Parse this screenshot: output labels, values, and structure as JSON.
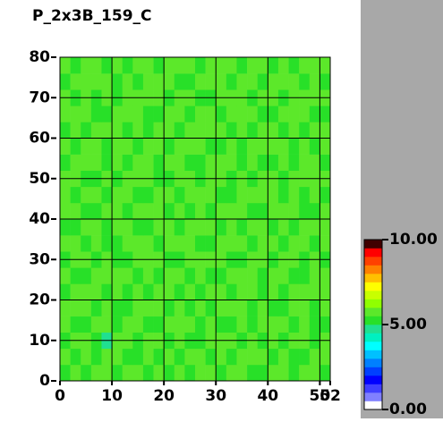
{
  "chart_data": {
    "type": "heatmap",
    "title": "P_2x3B_159_C",
    "xlim": [
      0,
      52
    ],
    "xticks": [
      0,
      10,
      20,
      30,
      40,
      50,
      52
    ],
    "ylim": [
      0,
      80
    ],
    "yticks": [
      0,
      10,
      20,
      30,
      40,
      50,
      60,
      70,
      80
    ],
    "grid": true,
    "clim": [
      0,
      10
    ],
    "cticks": [
      {
        "value": 0,
        "label": "0.00"
      },
      {
        "value": 5,
        "label": "5.00"
      },
      {
        "value": 10,
        "label": "10.00"
      }
    ],
    "colorscale": [
      "#ffffff",
      "#8080ff",
      "#4040ff",
      "#0000ff",
      "#0040ff",
      "#0080ff",
      "#00c0ff",
      "#00ffff",
      "#00f0c0",
      "#20e090",
      "#28e028",
      "#5ce82a",
      "#90ff00",
      "#c8ff00",
      "#ffff00",
      "#ffc000",
      "#ff8000",
      "#ff4000",
      "#ff0000",
      "#400000"
    ],
    "z": [
      [
        5.4,
        5.7,
        5.2,
        5.6,
        5.9,
        5.3,
        5.5,
        5.8,
        5.1,
        5.6,
        5.4,
        5.7,
        5.3,
        5.9,
        5.5,
        5.2,
        5.6,
        5.8,
        5.4,
        5.1,
        5.7,
        5.5,
        5.3,
        5.6,
        5.9,
        5.4
      ],
      [
        5.6,
        5.3,
        5.8,
        5.1,
        5.5,
        5.7,
        5.2,
        5.4,
        5.9,
        5.3,
        5.6,
        5.0,
        5.5,
        5.8,
        5.4,
        5.7,
        5.1,
        5.5,
        5.9,
        5.6,
        5.3,
        5.8,
        5.4,
        5.2,
        5.6,
        5.7
      ],
      [
        5.2,
        5.9,
        5.5,
        5.4,
        4.9,
        5.6,
        5.8,
        5.3,
        5.5,
        5.7,
        5.1,
        5.6,
        5.4,
        5.2,
        5.9,
        5.5,
        5.7,
        5.3,
        5.6,
        5.4,
        5.8,
        5.1,
        5.6,
        5.5,
        5.3,
        5.8
      ],
      [
        5.7,
        5.4,
        5.1,
        5.8,
        5.6,
        5.3,
        5.5,
        5.9,
        5.2,
        5.4,
        5.7,
        5.5,
        5.8,
        5.3,
        5.6,
        5.1,
        5.4,
        5.9,
        5.2,
        5.7,
        5.5,
        5.6,
        5.0,
        5.8,
        5.4,
        5.3
      ],
      [
        5.5,
        5.8,
        5.6,
        5.3,
        5.7,
        5.4,
        5.1,
        5.6,
        5.8,
        5.5,
        5.3,
        5.9,
        5.2,
        5.7,
        5.4,
        5.6,
        5.8,
        5.5,
        5.3,
        5.9,
        5.1,
        5.4,
        5.7,
        5.6,
        5.2,
        5.5
      ],
      [
        5.3,
        5.6,
        5.9,
        5.5,
        5.2,
        5.8,
        5.4,
        5.7,
        5.3,
        5.6,
        5.8,
        5.4,
        5.6,
        5.1,
        5.5,
        5.9,
        5.3,
        5.6,
        5.7,
        5.4,
        5.8,
        5.2,
        5.5,
        5.9,
        5.6,
        5.7
      ],
      [
        5.8,
        5.2,
        5.4,
        5.7,
        5.5,
        5.6,
        5.9,
        5.1,
        5.6,
        5.4,
        5.5,
        5.7,
        5.3,
        5.8,
        5.2,
        5.4,
        5.6,
        5.5,
        5.8,
        5.3,
        5.6,
        5.7,
        5.4,
        5.1,
        5.5,
        5.9
      ],
      [
        5.4,
        5.5,
        5.7,
        5.2,
        5.8,
        5.4,
        5.3,
        5.6,
        5.5,
        5.9,
        5.2,
        5.4,
        5.7,
        5.5,
        5.6,
        5.8,
        5.2,
        5.4,
        5.5,
        5.7,
        5.3,
        5.9,
        5.6,
        5.4,
        5.8,
        5.2
      ],
      [
        5.6,
        5.9,
        5.3,
        5.6,
        5.4,
        5.1,
        5.7,
        5.5,
        5.8,
        5.3,
        5.6,
        5.5,
        5.9,
        5.4,
        5.2,
        5.6,
        5.7,
        5.9,
        5.3,
        5.5,
        5.6,
        5.4,
        5.8,
        5.7,
        5.3,
        5.5
      ],
      [
        5.1,
        5.4,
        5.6,
        5.8,
        5.3,
        5.7,
        5.5,
        5.2,
        5.4,
        5.6,
        5.9,
        5.3,
        5.5,
        5.7,
        5.8,
        5.4,
        5.5,
        5.2,
        5.6,
        5.8,
        5.4,
        5.5,
        5.3,
        5.6,
        5.7,
        5.9
      ],
      [
        5.7,
        5.5,
        5.2,
        5.4,
        5.6,
        5.9,
        5.3,
        5.8,
        5.6,
        5.5,
        5.4,
        5.7,
        5.2,
        5.6,
        5.3,
        5.5,
        5.9,
        5.6,
        5.4,
        5.2,
        5.7,
        5.8,
        5.5,
        5.3,
        5.4,
        5.6
      ],
      [
        5.5,
        5.3,
        5.8,
        5.6,
        5.1,
        5.5,
        5.7,
        5.4,
        5.3,
        5.8,
        5.6,
        5.2,
        5.6,
        5.9,
        5.5,
        5.3,
        5.4,
        5.7,
        5.8,
        5.6,
        5.5,
        5.3,
        5.9,
        5.4,
        5.6,
        5.2
      ],
      [
        5.8,
        5.6,
        5.4,
        5.3,
        5.7,
        5.2,
        5.6,
        5.9,
        5.5,
        5.4,
        5.3,
        5.8,
        5.5,
        5.4,
        5.7,
        5.6,
        5.2,
        5.5,
        5.3,
        5.9,
        5.6,
        5.4,
        5.7,
        5.5,
        5.8,
        5.6
      ],
      [
        5.3,
        5.7,
        5.5,
        5.9,
        5.4,
        5.6,
        5.2,
        5.5,
        5.7,
        5.1,
        5.8,
        5.6,
        5.4,
        5.3,
        5.6,
        5.9,
        5.5,
        5.4,
        5.7,
        5.3,
        5.2,
        5.6,
        5.4,
        5.8,
        5.5,
        5.3
      ],
      [
        5.6,
        5.4,
        5.7,
        5.5,
        5.2,
        5.8,
        5.5,
        5.3,
        5.6,
        5.7,
        5.4,
        5.5,
        5.9,
        5.6,
        5.2,
        5.4,
        5.8,
        5.3,
        5.5,
        5.6,
        5.9,
        5.5,
        5.2,
        5.6,
        5.4,
        5.7
      ],
      [
        5.4,
        5.8,
        5.3,
        5.6,
        5.9,
        5.5,
        5.4,
        5.7,
        5.2,
        5.6,
        5.5,
        5.3,
        5.7,
        5.8,
        5.5,
        5.6,
        5.3,
        5.9,
        5.4,
        5.5,
        5.7,
        5.3,
        5.6,
        5.4,
        5.9,
        5.5
      ],
      [
        5.7,
        5.5,
        5.6,
        5.2,
        5.4,
        5.7,
        5.8,
        5.5,
        5.4,
        5.3,
        5.9,
        5.6,
        5.4,
        5.5,
        5.8,
        5.2,
        5.6,
        5.5,
        5.7,
        5.4,
        5.3,
        5.8,
        5.5,
        5.6,
        5.2,
        5.4
      ],
      [
        5.5,
        5.2,
        5.9,
        5.4,
        5.6,
        5.3,
        5.5,
        5.6,
        5.8,
        5.5,
        5.4,
        5.7,
        5.6,
        5.3,
        5.4,
        5.7,
        5.5,
        5.6,
        5.2,
        5.8,
        5.5,
        5.4,
        5.6,
        5.7,
        5.5,
        5.8
      ],
      [
        5.3,
        5.6,
        5.5,
        5.7,
        5.5,
        5.4,
        5.9,
        5.2,
        5.6,
        5.8,
        5.5,
        5.4,
        5.3,
        5.6,
        5.7,
        5.5,
        5.4,
        5.8,
        5.6,
        5.3,
        5.6,
        5.5,
        5.9,
        5.4,
        5.6,
        5.3
      ],
      [
        5.6,
        5.4,
        5.7,
        5.5,
        5.3,
        5.8,
        5.4,
        5.6,
        5.5,
        5.3,
        5.7,
        5.6,
        5.5,
        5.4,
        5.9,
        5.6,
        5.7,
        5.4,
        5.5,
        5.6,
        5.4,
        5.7,
        5.3,
        5.5,
        5.8,
        5.6
      ]
    ]
  }
}
